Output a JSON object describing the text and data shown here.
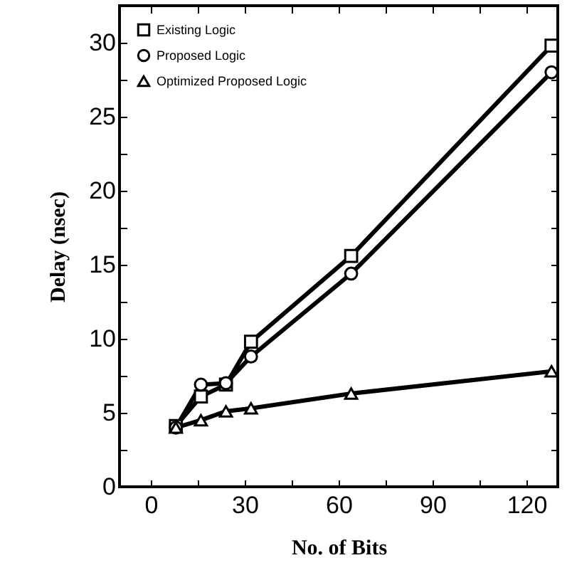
{
  "chart_data": {
    "type": "line",
    "xlabel": "No. of Bits",
    "ylabel": "Delay (nsec)",
    "x": [
      8,
      16,
      24,
      32,
      64,
      128
    ],
    "series": [
      {
        "name": "Existing Logic",
        "color": "#000000",
        "marker": "square",
        "values": [
          4.1,
          6.1,
          6.9,
          9.8,
          15.6,
          29.8
        ]
      },
      {
        "name": "Proposed Logic",
        "color": "#000000",
        "marker": "circle",
        "values": [
          4.0,
          6.9,
          7.0,
          8.8,
          14.4,
          28.0
        ]
      },
      {
        "name": "Optimized Proposed Logic",
        "color": "#000000",
        "marker": "triangle",
        "values": [
          4.0,
          4.5,
          5.1,
          5.3,
          6.3,
          7.8
        ]
      }
    ],
    "xlim": [
      -10,
      130
    ],
    "ylim": [
      0,
      32.5
    ],
    "xticks": [
      0,
      {
        "value": 15,
        "label": null
      },
      30,
      {
        "value": 45,
        "label": null
      },
      60,
      {
        "value": 75,
        "label": null
      },
      90,
      {
        "value": 105,
        "label": null
      },
      120
    ],
    "yticks": [
      0,
      {
        "value": 2.5,
        "label": null
      },
      5,
      {
        "value": 7.5,
        "label": null
      },
      10,
      {
        "value": 12.5,
        "label": null
      },
      15,
      {
        "value": 17.5,
        "label": null
      },
      20,
      {
        "value": 22.5,
        "label": null
      },
      25,
      {
        "value": 27.5,
        "label": null
      },
      30
    ],
    "grid": false,
    "legend": "top left",
    "line_style": "solid"
  }
}
